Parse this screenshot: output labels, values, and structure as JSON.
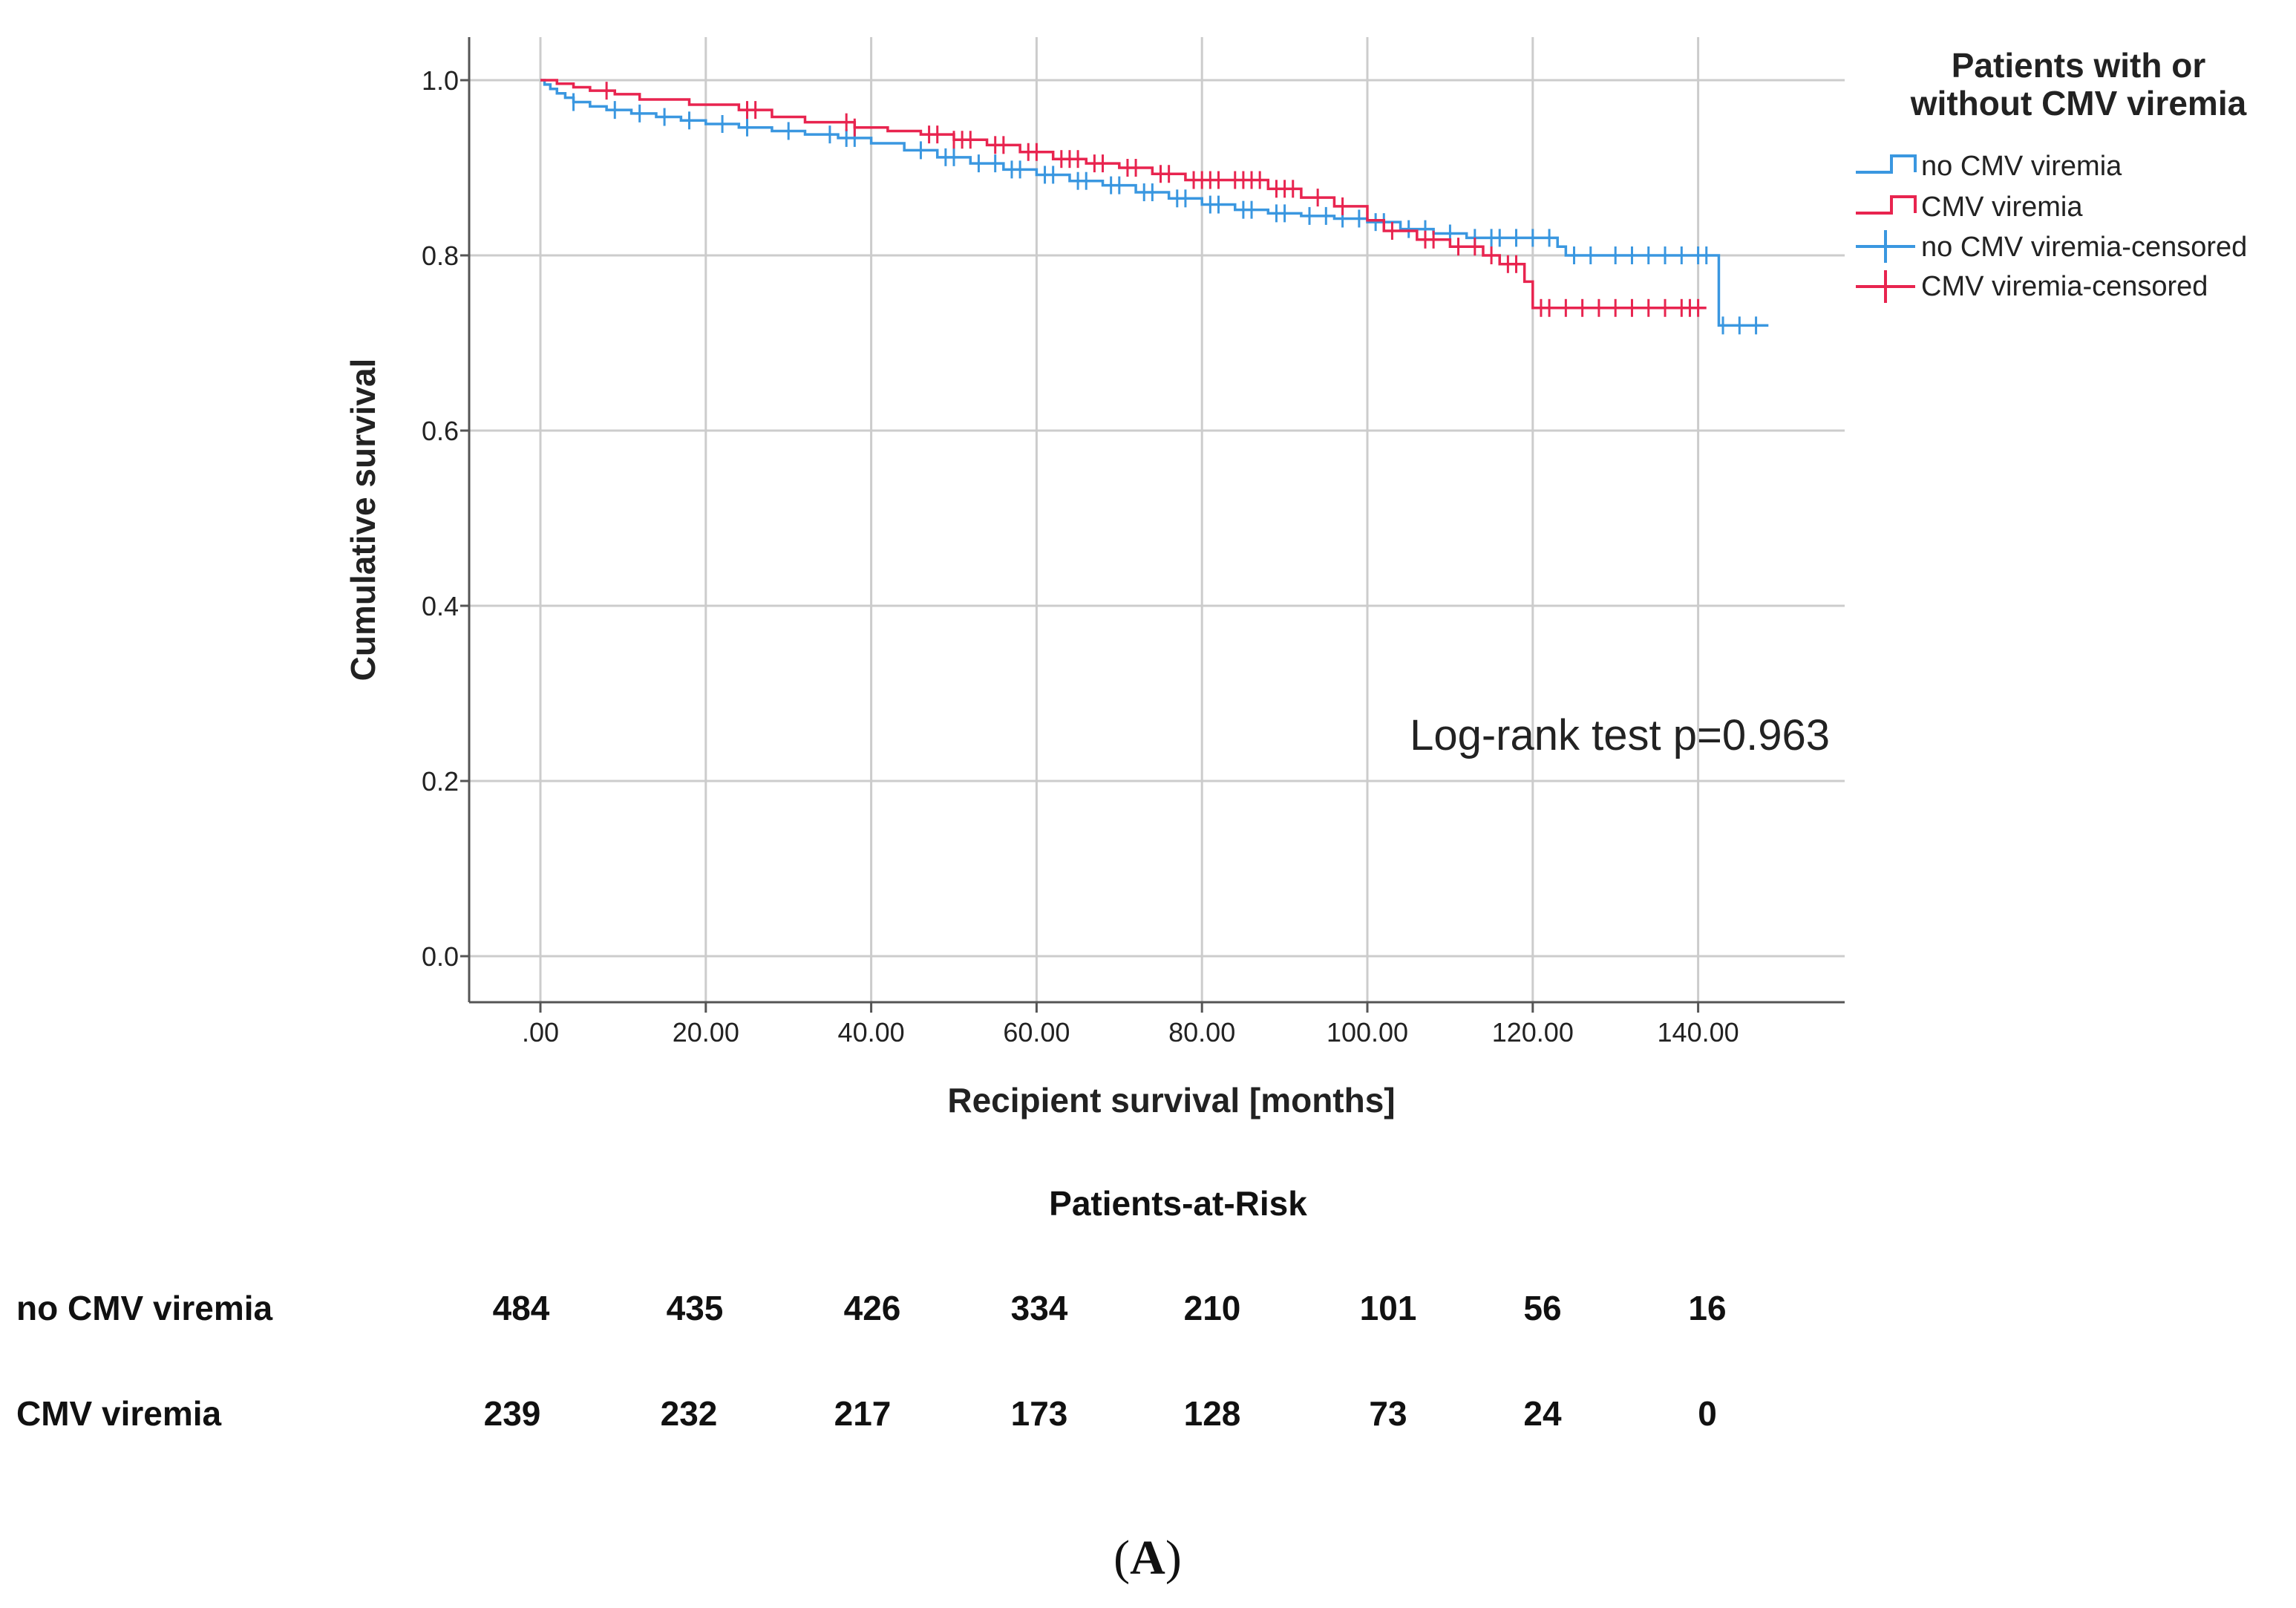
{
  "chart_data": {
    "type": "line",
    "subtype": "kaplan-meier",
    "ylabel": "Cumulative survival",
    "xlabel": "Recipient survival [months]",
    "xlim": [
      -8.5,
      158
    ],
    "ylim": [
      -0.05,
      1.05
    ],
    "x_ticks": [
      0,
      20,
      40,
      60,
      80,
      100,
      120,
      140
    ],
    "x_tick_labels": [
      ".00",
      "20.00",
      "40.00",
      "60.00",
      "80.00",
      "100.00",
      "120.00",
      "140.00"
    ],
    "y_ticks": [
      0.0,
      0.2,
      0.4,
      0.6,
      0.8,
      1.0
    ],
    "y_tick_labels": [
      "0.0",
      "0.2",
      "0.4",
      "0.6",
      "0.8",
      "1.0"
    ],
    "grid": true,
    "annotation": "Log-rank test p=0.963",
    "legend": {
      "title_line1": "Patients with or",
      "title_line2": "without CMV viremia",
      "position": "right",
      "entries": [
        {
          "label": "no CMV viremia",
          "kind": "line",
          "color": "#3a97e0"
        },
        {
          "label": "CMV viremia",
          "kind": "line",
          "color": "#e8244f"
        },
        {
          "label": "no CMV viremia-censored",
          "kind": "censor",
          "color": "#3a97e0"
        },
        {
          "label": "CMV viremia-censored",
          "kind": "censor",
          "color": "#e8244f"
        }
      ]
    },
    "series": [
      {
        "name": "no CMV viremia",
        "color": "#3a97e0",
        "steps": [
          [
            0,
            1.0
          ],
          [
            0.5,
            0.995
          ],
          [
            1.2,
            0.99
          ],
          [
            2,
            0.985
          ],
          [
            3,
            0.98
          ],
          [
            4,
            0.975
          ],
          [
            6,
            0.97
          ],
          [
            8,
            0.966
          ],
          [
            11,
            0.962
          ],
          [
            14,
            0.958
          ],
          [
            17,
            0.954
          ],
          [
            20,
            0.95
          ],
          [
            24,
            0.946
          ],
          [
            28,
            0.942
          ],
          [
            32,
            0.938
          ],
          [
            36,
            0.934
          ],
          [
            40,
            0.928
          ],
          [
            44,
            0.92
          ],
          [
            48,
            0.912
          ],
          [
            52,
            0.905
          ],
          [
            56,
            0.898
          ],
          [
            60,
            0.892
          ],
          [
            64,
            0.885
          ],
          [
            68,
            0.88
          ],
          [
            72,
            0.872
          ],
          [
            76,
            0.865
          ],
          [
            80,
            0.858
          ],
          [
            84,
            0.852
          ],
          [
            88,
            0.848
          ],
          [
            92,
            0.845
          ],
          [
            96,
            0.842
          ],
          [
            100,
            0.838
          ],
          [
            104,
            0.83
          ],
          [
            108,
            0.825
          ],
          [
            112,
            0.82
          ],
          [
            123,
            0.81
          ],
          [
            124,
            0.8
          ],
          [
            142.5,
            0.72
          ],
          [
            148.5,
            0.72
          ]
        ],
        "censored": [
          [
            4,
            0.975
          ],
          [
            9,
            0.966
          ],
          [
            12,
            0.962
          ],
          [
            15,
            0.958
          ],
          [
            18,
            0.954
          ],
          [
            22,
            0.95
          ],
          [
            25,
            0.946
          ],
          [
            30,
            0.942
          ],
          [
            35,
            0.938
          ],
          [
            37,
            0.934
          ],
          [
            38,
            0.934
          ],
          [
            46,
            0.92
          ],
          [
            49,
            0.912
          ],
          [
            50,
            0.912
          ],
          [
            53,
            0.905
          ],
          [
            55,
            0.905
          ],
          [
            57,
            0.898
          ],
          [
            58,
            0.898
          ],
          [
            61,
            0.892
          ],
          [
            62,
            0.892
          ],
          [
            65,
            0.885
          ],
          [
            66,
            0.885
          ],
          [
            69,
            0.88
          ],
          [
            70,
            0.88
          ],
          [
            73,
            0.872
          ],
          [
            74,
            0.872
          ],
          [
            77,
            0.865
          ],
          [
            78,
            0.865
          ],
          [
            81,
            0.858
          ],
          [
            82,
            0.858
          ],
          [
            85,
            0.852
          ],
          [
            86,
            0.852
          ],
          [
            89,
            0.848
          ],
          [
            90,
            0.848
          ],
          [
            93,
            0.845
          ],
          [
            95,
            0.845
          ],
          [
            97,
            0.842
          ],
          [
            99,
            0.842
          ],
          [
            101,
            0.838
          ],
          [
            102,
            0.838
          ],
          [
            105,
            0.83
          ],
          [
            107,
            0.83
          ],
          [
            110,
            0.825
          ],
          [
            113,
            0.82
          ],
          [
            115,
            0.82
          ],
          [
            116,
            0.82
          ],
          [
            118,
            0.82
          ],
          [
            120,
            0.82
          ],
          [
            122,
            0.82
          ],
          [
            125,
            0.8
          ],
          [
            127,
            0.8
          ],
          [
            130,
            0.8
          ],
          [
            132,
            0.8
          ],
          [
            134,
            0.8
          ],
          [
            136,
            0.8
          ],
          [
            138,
            0.8
          ],
          [
            140,
            0.8
          ],
          [
            141,
            0.8
          ],
          [
            143,
            0.72
          ],
          [
            145,
            0.72
          ],
          [
            147,
            0.72
          ]
        ]
      },
      {
        "name": "CMV viremia",
        "color": "#e8244f",
        "steps": [
          [
            0,
            1.0
          ],
          [
            2,
            0.996
          ],
          [
            4,
            0.992
          ],
          [
            6,
            0.988
          ],
          [
            9,
            0.984
          ],
          [
            12,
            0.978
          ],
          [
            18,
            0.972
          ],
          [
            24,
            0.966
          ],
          [
            28,
            0.958
          ],
          [
            32,
            0.952
          ],
          [
            38,
            0.946
          ],
          [
            42,
            0.942
          ],
          [
            46,
            0.938
          ],
          [
            50,
            0.932
          ],
          [
            54,
            0.926
          ],
          [
            58,
            0.918
          ],
          [
            62,
            0.91
          ],
          [
            66,
            0.905
          ],
          [
            70,
            0.9
          ],
          [
            74,
            0.893
          ],
          [
            78,
            0.886
          ],
          [
            88,
            0.876
          ],
          [
            92,
            0.866
          ],
          [
            96,
            0.856
          ],
          [
            100,
            0.84
          ],
          [
            102,
            0.828
          ],
          [
            106,
            0.818
          ],
          [
            110,
            0.81
          ],
          [
            114,
            0.8
          ],
          [
            116,
            0.79
          ],
          [
            119,
            0.77
          ],
          [
            120,
            0.74
          ],
          [
            141,
            0.74
          ]
        ],
        "censored": [
          [
            8,
            0.988
          ],
          [
            25,
            0.966
          ],
          [
            26,
            0.966
          ],
          [
            37,
            0.952
          ],
          [
            38,
            0.946
          ],
          [
            47,
            0.938
          ],
          [
            48,
            0.938
          ],
          [
            50,
            0.932
          ],
          [
            51,
            0.932
          ],
          [
            52,
            0.932
          ],
          [
            55,
            0.926
          ],
          [
            56,
            0.926
          ],
          [
            59,
            0.918
          ],
          [
            60,
            0.918
          ],
          [
            63,
            0.91
          ],
          [
            64,
            0.91
          ],
          [
            65,
            0.91
          ],
          [
            67,
            0.905
          ],
          [
            68,
            0.905
          ],
          [
            71,
            0.9
          ],
          [
            72,
            0.9
          ],
          [
            75,
            0.893
          ],
          [
            76,
            0.893
          ],
          [
            79,
            0.886
          ],
          [
            80,
            0.886
          ],
          [
            81,
            0.886
          ],
          [
            82,
            0.886
          ],
          [
            84,
            0.886
          ],
          [
            85,
            0.886
          ],
          [
            86,
            0.886
          ],
          [
            87,
            0.886
          ],
          [
            89,
            0.876
          ],
          [
            90,
            0.876
          ],
          [
            91,
            0.876
          ],
          [
            94,
            0.866
          ],
          [
            97,
            0.856
          ],
          [
            103,
            0.828
          ],
          [
            107,
            0.818
          ],
          [
            108,
            0.818
          ],
          [
            111,
            0.81
          ],
          [
            113,
            0.81
          ],
          [
            115,
            0.8
          ],
          [
            117,
            0.79
          ],
          [
            118,
            0.79
          ],
          [
            121,
            0.74
          ],
          [
            122,
            0.74
          ],
          [
            124,
            0.74
          ],
          [
            126,
            0.74
          ],
          [
            128,
            0.74
          ],
          [
            130,
            0.74
          ],
          [
            132,
            0.74
          ],
          [
            134,
            0.74
          ],
          [
            136,
            0.74
          ],
          [
            138,
            0.74
          ],
          [
            139,
            0.74
          ],
          [
            140,
            0.74
          ]
        ]
      }
    ],
    "risk_table": {
      "title": "Patients-at-Risk",
      "rows": [
        {
          "label": "no CMV viremia",
          "values": [
            "484",
            "435",
            "426",
            "334",
            "210",
            "101",
            "56",
            "16"
          ]
        },
        {
          "label": "CMV viremia",
          "values": [
            "239",
            "232",
            "217",
            "173",
            "128",
            "73",
            "24",
            "0"
          ]
        }
      ]
    }
  },
  "panel_label": {
    "open": "(",
    "letter": "A",
    "close": ")"
  }
}
